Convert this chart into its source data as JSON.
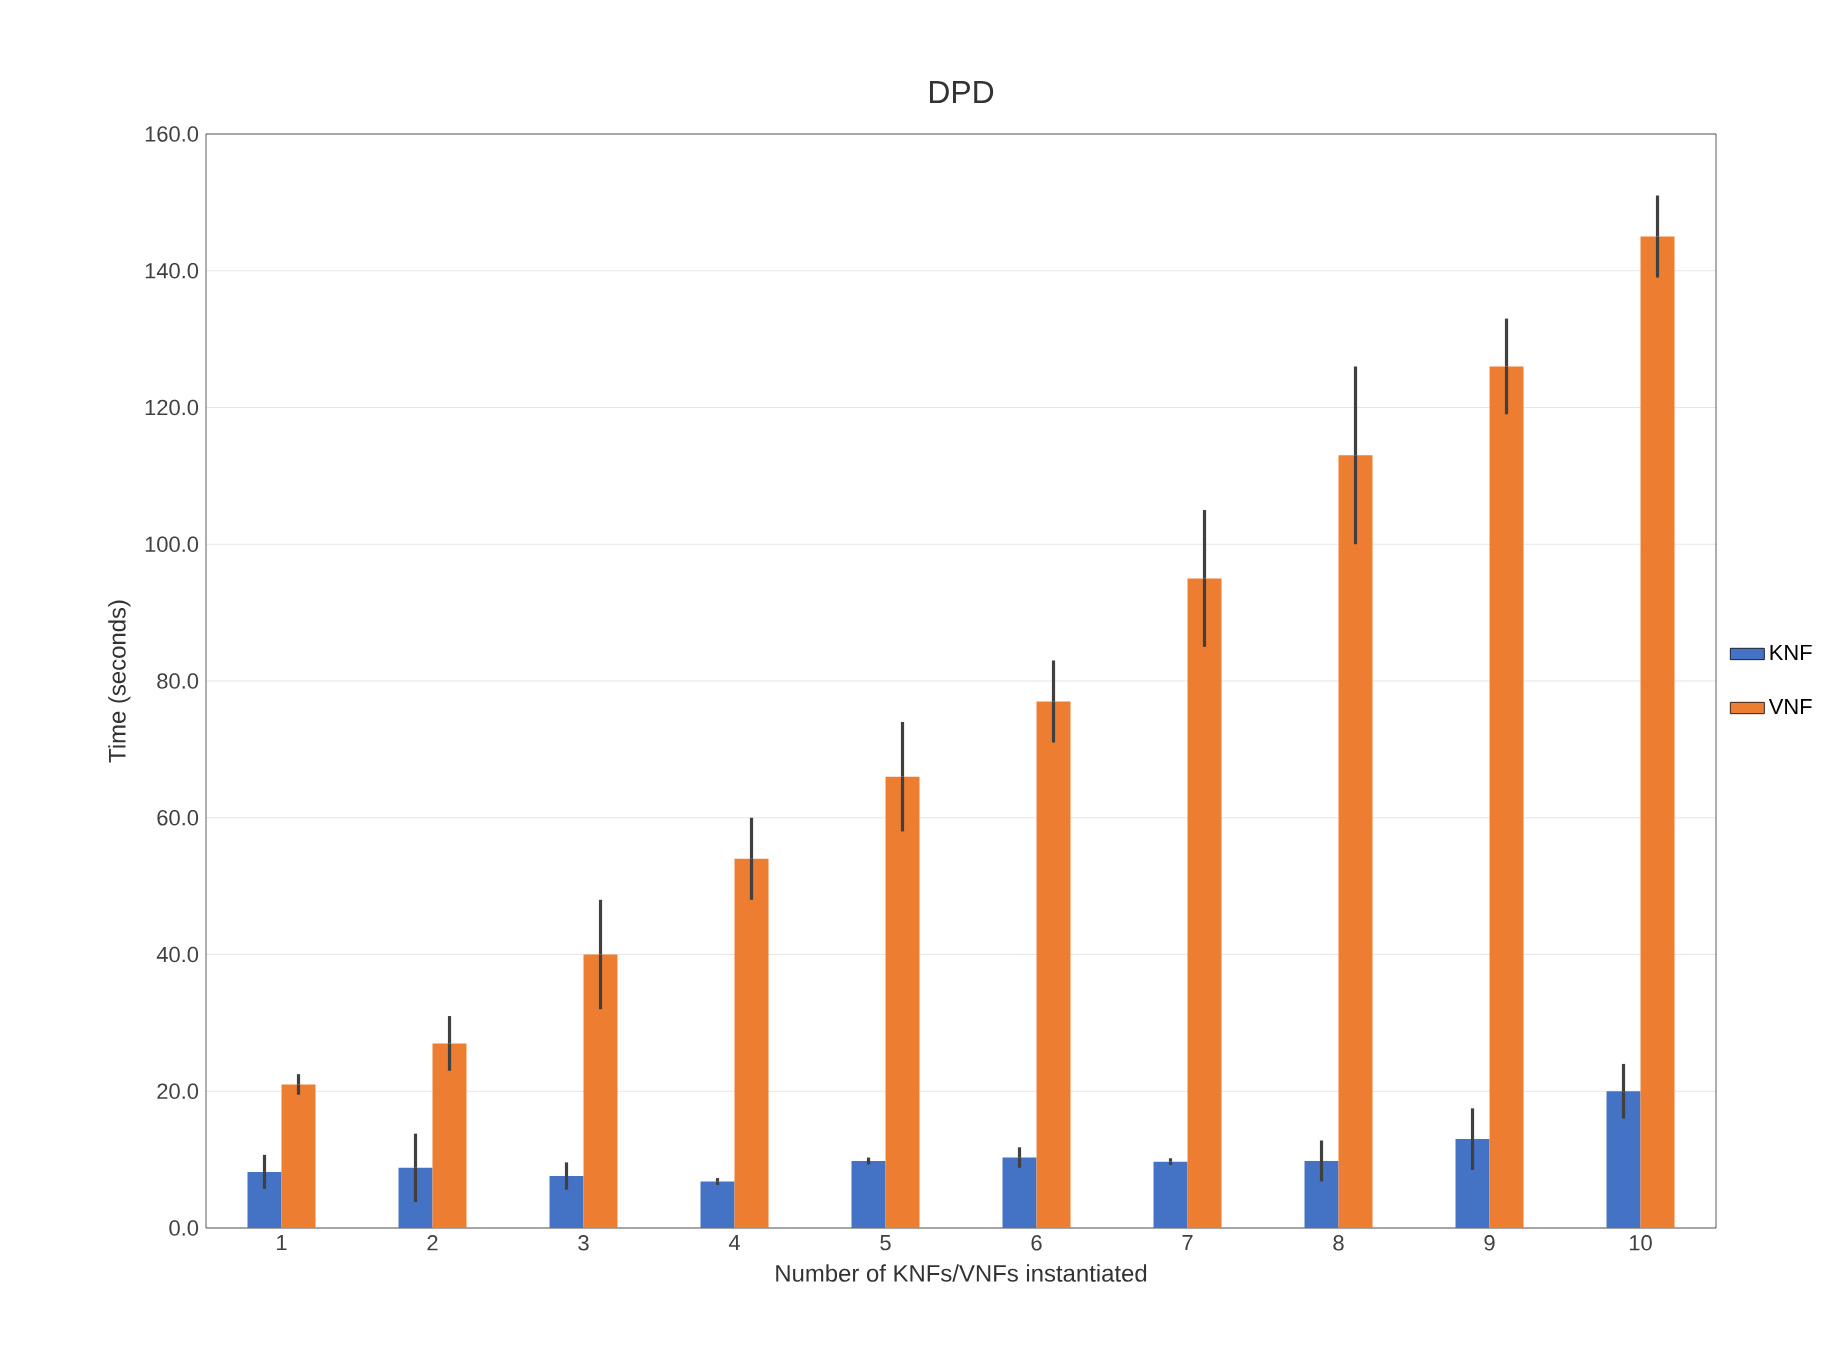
{
  "chart_data": {
    "type": "bar",
    "title": "DPD",
    "xlabel": "Number of KNFs/VNFs instantiated",
    "ylabel": "Time (seconds)",
    "categories": [
      "1",
      "2",
      "3",
      "4",
      "5",
      "6",
      "7",
      "8",
      "9",
      "10"
    ],
    "series": [
      {
        "name": "KNF",
        "color": "#4472c4",
        "values": [
          8.2,
          8.8,
          7.6,
          6.8,
          9.8,
          10.3,
          9.7,
          9.8,
          13.0,
          20.0
        ],
        "errors": [
          2.5,
          5.0,
          2.0,
          0.5,
          0.5,
          1.5,
          0.5,
          3.0,
          4.5,
          4.0
        ]
      },
      {
        "name": "VNF",
        "color": "#ed7d31",
        "values": [
          21.0,
          27.0,
          40.0,
          54.0,
          66.0,
          77.0,
          95.0,
          113.0,
          126.0,
          145.0
        ],
        "errors": [
          1.5,
          4.0,
          8.0,
          6.0,
          8.0,
          6.0,
          10.0,
          13.0,
          7.0,
          6.0
        ]
      }
    ],
    "ylim": [
      0,
      160
    ],
    "yticks": [
      {
        "value": 0,
        "label": "0.0"
      },
      {
        "value": 20,
        "label": "20.0"
      },
      {
        "value": 40,
        "label": "40.0"
      },
      {
        "value": 60,
        "label": "60.0"
      },
      {
        "value": 80,
        "label": "80.0"
      },
      {
        "value": 100,
        "label": "100.0"
      },
      {
        "value": 120,
        "label": "120.0"
      },
      {
        "value": 140,
        "label": "140.0"
      },
      {
        "value": 160,
        "label": "160.0"
      }
    ],
    "grid": "y",
    "legend": "right"
  }
}
